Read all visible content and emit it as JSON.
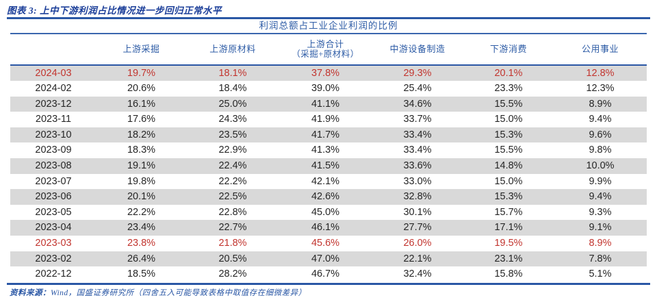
{
  "figure": {
    "title": "图表 3:  上中下游利润占比情况进一步回归正常水平"
  },
  "table": {
    "caption": "利润总额占工业企业利润的比例",
    "columns": [
      {
        "label": ""
      },
      {
        "label": "上游采掘"
      },
      {
        "label": "上游原材料"
      },
      {
        "label": "上游合计",
        "sub": "（采掘+原材料）"
      },
      {
        "label": "中游设备制造"
      },
      {
        "label": "下游消费"
      },
      {
        "label": "公用事业"
      }
    ],
    "rows": [
      {
        "date": "2024-03",
        "values": [
          "19.7%",
          "18.1%",
          "37.8%",
          "29.3%",
          "20.1%",
          "12.8%"
        ],
        "shaded": true,
        "highlight": true
      },
      {
        "date": "2024-02",
        "values": [
          "20.6%",
          "18.4%",
          "39.0%",
          "25.4%",
          "23.3%",
          "12.3%"
        ],
        "shaded": false,
        "highlight": false
      },
      {
        "date": "2023-12",
        "values": [
          "16.1%",
          "25.0%",
          "41.1%",
          "34.6%",
          "15.5%",
          "8.9%"
        ],
        "shaded": true,
        "highlight": false
      },
      {
        "date": "2023-11",
        "values": [
          "17.6%",
          "24.3%",
          "41.9%",
          "33.7%",
          "15.0%",
          "9.4%"
        ],
        "shaded": false,
        "highlight": false
      },
      {
        "date": "2023-10",
        "values": [
          "18.2%",
          "23.5%",
          "41.7%",
          "33.4%",
          "15.3%",
          "9.6%"
        ],
        "shaded": true,
        "highlight": false
      },
      {
        "date": "2023-09",
        "values": [
          "18.3%",
          "22.9%",
          "41.3%",
          "33.4%",
          "15.5%",
          "9.8%"
        ],
        "shaded": false,
        "highlight": false
      },
      {
        "date": "2023-08",
        "values": [
          "19.1%",
          "22.4%",
          "41.5%",
          "33.6%",
          "14.8%",
          "10.0%"
        ],
        "shaded": true,
        "highlight": false
      },
      {
        "date": "2023-07",
        "values": [
          "19.8%",
          "22.2%",
          "42.1%",
          "33.0%",
          "15.0%",
          "9.9%"
        ],
        "shaded": false,
        "highlight": false
      },
      {
        "date": "2023-06",
        "values": [
          "20.1%",
          "22.5%",
          "42.6%",
          "32.8%",
          "15.3%",
          "9.4%"
        ],
        "shaded": true,
        "highlight": false
      },
      {
        "date": "2023-05",
        "values": [
          "22.2%",
          "22.8%",
          "45.0%",
          "30.1%",
          "15.7%",
          "9.3%"
        ],
        "shaded": false,
        "highlight": false
      },
      {
        "date": "2023-04",
        "values": [
          "23.4%",
          "22.7%",
          "46.1%",
          "27.7%",
          "17.1%",
          "9.1%"
        ],
        "shaded": true,
        "highlight": false
      },
      {
        "date": "2023-03",
        "values": [
          "23.8%",
          "21.8%",
          "45.6%",
          "26.0%",
          "19.5%",
          "8.9%"
        ],
        "shaded": false,
        "highlight": true
      },
      {
        "date": "2023-02",
        "values": [
          "26.4%",
          "20.5%",
          "47.0%",
          "22.1%",
          "23.1%",
          "7.8%"
        ],
        "shaded": true,
        "highlight": false
      },
      {
        "date": "2022-12",
        "values": [
          "18.5%",
          "28.2%",
          "46.7%",
          "32.4%",
          "15.8%",
          "5.1%"
        ],
        "shaded": false,
        "highlight": false
      }
    ]
  },
  "footer": {
    "source_label": "资料来源：",
    "source_text": "Wind，国盛证券研究所（四舍五入可能导致表格中取值存在细微差异）"
  },
  "colors": {
    "accent_blue": "#2a57a5",
    "title_blue": "#1b3e99",
    "header_blue": "#2e5ca6",
    "highlight_red": "#c2352f",
    "stripe_gray": "#d9d9d9",
    "body_text": "#262626"
  }
}
